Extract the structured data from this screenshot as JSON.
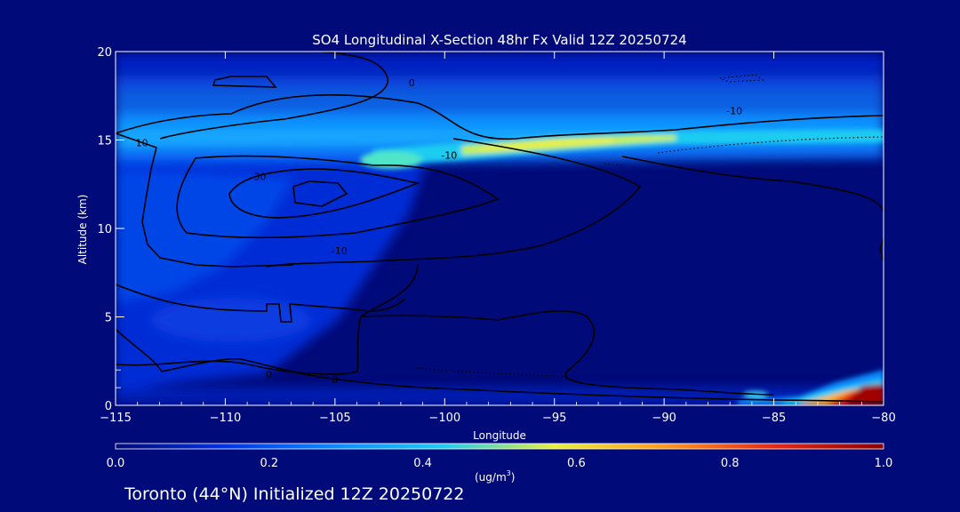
{
  "chart_data": {
    "type": "heatmap",
    "title": "SO4 Longitudinal X-Section 48hr  Fx Valid 12Z 20250724",
    "xlabel": "Longitude",
    "ylabel": "Altitude (km)",
    "xlim": [
      -115,
      -80
    ],
    "ylim": [
      0,
      20
    ],
    "xticks": [
      -115,
      -110,
      -105,
      -100,
      -95,
      -90,
      -85,
      -80
    ],
    "xtick_labels": [
      "−115",
      "−110",
      "−105",
      "−100",
      "−95",
      "−90",
      "−85",
      "−80"
    ],
    "yticks": [
      0,
      5,
      10,
      15,
      20
    ],
    "ytick_labels": [
      "0",
      "5",
      "10",
      "15",
      "20"
    ],
    "colorbar": {
      "min": 0.0,
      "max": 1.0,
      "ticks": [
        0.0,
        0.2,
        0.4,
        0.6,
        0.8,
        1.0
      ],
      "tick_labels": [
        "0.0",
        "0.2",
        "0.4",
        "0.6",
        "0.8",
        "1.0"
      ],
      "unit_label": "(ug/m",
      "unit_exp": "3",
      "unit_close": ")",
      "colors": [
        "#000a78",
        "#0032e6",
        "#0a8cff",
        "#1ecdf0",
        "#e6f03c",
        "#ff9a1e",
        "#e62814",
        "#8c0000"
      ]
    },
    "concentration_features": [
      {
        "desc": "high band",
        "lon": [
          -115,
          -80
        ],
        "alt": [
          13.5,
          16
        ],
        "peak": 0.6
      },
      {
        "desc": "upper layer",
        "lon": [
          -115,
          -80
        ],
        "alt": [
          16,
          19
        ],
        "peak": 0.3
      },
      {
        "desc": "mid levels west",
        "lon": [
          -115,
          -100
        ],
        "alt": [
          2,
          13
        ],
        "peak": 0.25
      },
      {
        "desc": "surface plume",
        "lon": [
          -86,
          -80
        ],
        "alt": [
          0,
          1.5
        ],
        "peak": 1.0
      }
    ],
    "contour_labels": [
      {
        "text": "10",
        "lon": -113.8,
        "alt": 14.8
      },
      {
        "text": "-10",
        "lon": -99.8,
        "alt": 14.1
      },
      {
        "text": "-30",
        "lon": -108.5,
        "alt": 12.9
      },
      {
        "text": "-10",
        "lon": -104.8,
        "alt": 8.7
      },
      {
        "text": "0",
        "lon": -101.5,
        "alt": 18.2
      },
      {
        "text": "-10",
        "lon": -86.8,
        "alt": 16.6
      },
      {
        "text": "0",
        "lon": -108.0,
        "alt": 1.7
      },
      {
        "text": "0",
        "lon": -105.0,
        "alt": 1.4
      }
    ]
  },
  "footer": {
    "text": "Toronto (44°N) Initialized 12Z 20250722"
  },
  "colors": {
    "background": "#000a78",
    "contour": "#000000",
    "text": "#ffffff"
  }
}
